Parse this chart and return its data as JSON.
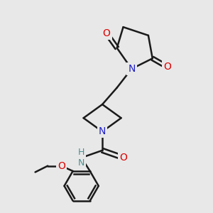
{
  "bg_color": "#e8e8e8",
  "atom_colors": {
    "N": "#2020cc",
    "O": "#dd0000",
    "C": "#000000",
    "NH": "#4a8f8f"
  },
  "bond_color": "#1a1a1a",
  "bond_width": 1.8,
  "font_size_atom": 10,
  "fig_size": [
    3.0,
    3.0
  ],
  "dpi": 100
}
